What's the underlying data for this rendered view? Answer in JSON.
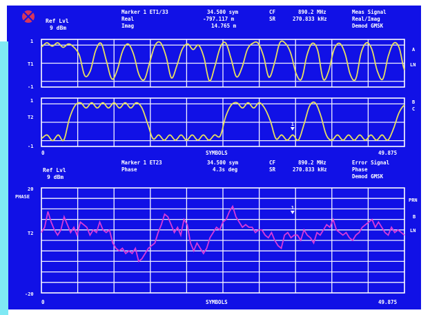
{
  "colors": {
    "screen_bg": "#1111e6",
    "left_band": "#7fe9f4",
    "grid": "#f4f4ff",
    "text": "#ffffff",
    "trace_top": "#e8e060",
    "trace_bottom": "#d83ad8",
    "logo": "#d6365c"
  },
  "top_header": {
    "ref_lvl_label": "Ref Lvl",
    "ref_lvl_value": "9 dBm",
    "marker_title": "Marker 1 ET1/33",
    "marker_row1_label": "Real",
    "marker_row2_label": "Imag",
    "marker_value1": "34.500 sym",
    "marker_value2": "-797.117 m",
    "marker_value3": "14.765 m",
    "cf_label": "CF",
    "sr_label": "SR",
    "freq_value": "890.2 MHz",
    "sr_value": "270.833 kHz",
    "meas_title": "Meas Signal",
    "meas_mode": "Real/Imag",
    "demod": "Demod  GMSK"
  },
  "panel1": {
    "y_top": "1",
    "y_mid": "T1",
    "y_bot": "-1",
    "right_a": "A",
    "right_ln": "LN",
    "trace": [
      0.72,
      0.9,
      0.75,
      0.9,
      0.7,
      0.85,
      0.7,
      0.35,
      -0.55,
      -0.35,
      0.55,
      0.88,
      0.1,
      -0.7,
      -0.3,
      0.55,
      0.85,
      0.4,
      -0.5,
      -0.72,
      0.05,
      0.8,
      0.9,
      0.3,
      -0.65,
      -0.1,
      0.62,
      0.85,
      0.6,
      0.8,
      0.25,
      -0.78,
      -0.15,
      0.7,
      0.9,
      0.2,
      -0.6,
      -0.2,
      0.6,
      0.88,
      0.88,
      0.3,
      -0.62,
      0.0,
      0.9,
      0.88,
      0.45,
      -0.45,
      -0.7,
      0.35,
      0.88,
      0.55,
      -0.7,
      -0.35,
      0.6,
      0.88,
      0.45,
      -0.5,
      -0.7,
      0.45,
      0.9,
      0.6,
      -0.35,
      -0.7,
      0.3,
      0.88,
      0.7,
      -0.3
    ]
  },
  "panel2": {
    "y_top": "1",
    "y_mid": "T2",
    "y_bot": "-1",
    "right_b": "B",
    "right_c": "C",
    "x_start": "0",
    "x_mid": "SYMBOLS",
    "x_end": "49.875",
    "marker_symbol": "1",
    "marker_x_symbols": 34.5,
    "trace": [
      -0.7,
      -0.55,
      -0.8,
      -0.55,
      -0.78,
      0.15,
      0.72,
      0.85,
      0.62,
      0.85,
      0.62,
      0.85,
      0.62,
      0.85,
      0.62,
      0.85,
      0.62,
      0.85,
      0.62,
      -0.05,
      -0.72,
      -0.55,
      -0.78,
      -0.55,
      -0.78,
      -0.55,
      -0.78,
      -0.55,
      -0.78,
      -0.55,
      -0.78,
      -0.55,
      -0.6,
      0.25,
      0.75,
      0.85,
      0.62,
      0.85,
      0.62,
      0.85,
      0.6,
      0.05,
      -0.72,
      -0.55,
      -0.78,
      -0.55,
      -0.78,
      -0.1,
      0.7,
      0.85,
      0.3,
      -0.55,
      -0.78,
      -0.55,
      -0.78,
      -0.55,
      -0.78,
      -0.55,
      -0.78,
      -0.55,
      -0.78,
      -0.55,
      -0.78,
      -0.3,
      0.4,
      0.75
    ]
  },
  "bottom_header": {
    "ref_lvl_label": "Ref Lvl",
    "ref_lvl_value": "9 dBm",
    "marker_title": "Marker 1 ET23",
    "marker_row_label": "Phase",
    "marker_value1": "34.500 sym",
    "marker_value2": "4.3s deg",
    "cf_label": "CF",
    "sr_label": "SR",
    "freq_value": "890.2 MHz",
    "sr_value": "270.833 kHz",
    "err_title": "Error Signal",
    "err_mode": "Phase",
    "demod": "Demod  GMSK"
  },
  "panel3": {
    "y_top": "20",
    "y_label": "PHASE",
    "y_mid": "T2",
    "y_bot": "-20",
    "right_prn": "PRN",
    "right_b": "B",
    "right_ln": "LN",
    "x_start": "0",
    "x_mid": "SYMBOLS",
    "x_end": "49.875",
    "marker_symbol": "1",
    "marker_x_symbols": 34.5,
    "trace": [
      3,
      5,
      11,
      7,
      4,
      2,
      4,
      9,
      6,
      3,
      5,
      2,
      7,
      6,
      5,
      2,
      4,
      3,
      7,
      4,
      3,
      4,
      -1,
      -3,
      -4,
      -3,
      -5,
      -4,
      -5,
      -3,
      -8,
      -7,
      -5,
      -3,
      -2,
      -1,
      3,
      6,
      10,
      9,
      6,
      3,
      5,
      2,
      8,
      6,
      -1,
      -4,
      -1,
      -3,
      -5,
      -3,
      1,
      3,
      5,
      4,
      7,
      8,
      11,
      13,
      9,
      7,
      5,
      6,
      5,
      5,
      3,
      4,
      4,
      2,
      1,
      3,
      0,
      -2,
      -3,
      2,
      3,
      1,
      2,
      2,
      0,
      4,
      2,
      1,
      -1,
      3,
      2,
      4,
      6,
      5,
      8,
      4,
      3,
      2,
      3,
      1,
      0,
      2,
      3,
      5,
      6,
      7,
      8,
      5,
      7,
      5,
      3,
      2,
      5,
      3,
      4,
      3,
      2
    ]
  }
}
